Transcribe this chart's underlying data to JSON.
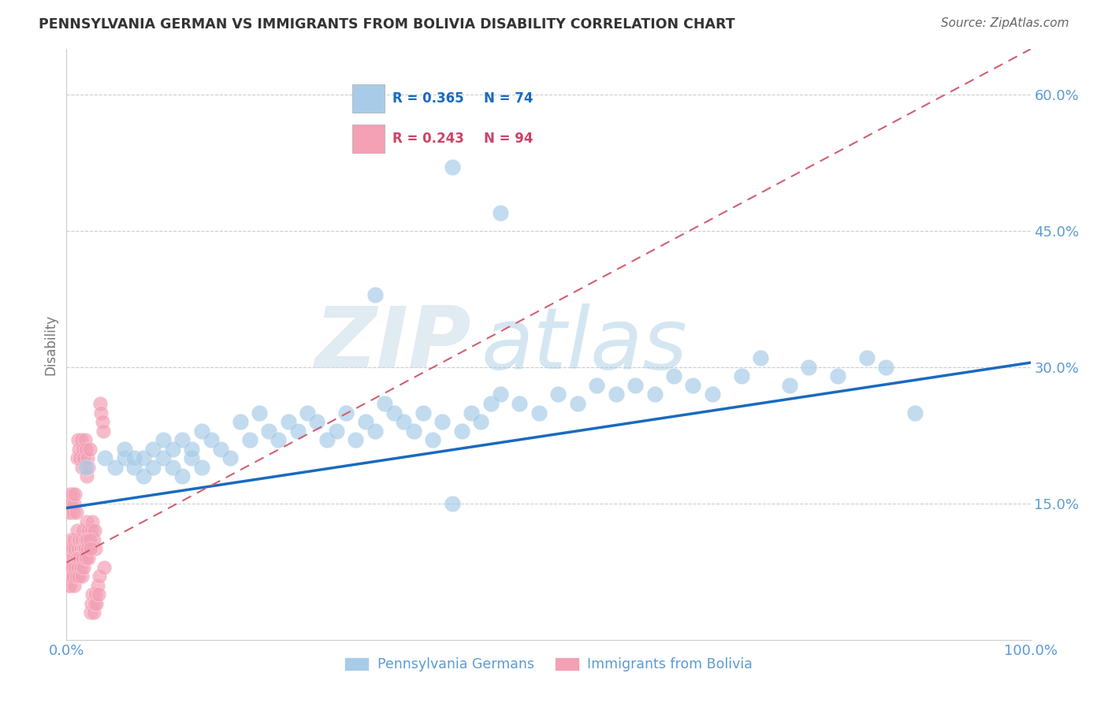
{
  "title": "PENNSYLVANIA GERMAN VS IMMIGRANTS FROM BOLIVIA DISABILITY CORRELATION CHART",
  "source": "Source: ZipAtlas.com",
  "ylabel": "Disability",
  "xlim": [
    0.0,
    1.0
  ],
  "ylim": [
    0.0,
    0.65
  ],
  "yticks": [
    0.15,
    0.3,
    0.45,
    0.6
  ],
  "ytick_labels": [
    "15.0%",
    "30.0%",
    "45.0%",
    "60.0%"
  ],
  "xticks": [
    0.0,
    1.0
  ],
  "xtick_labels": [
    "0.0%",
    "100.0%"
  ],
  "grid_color": "#cccccc",
  "background_color": "#ffffff",
  "blue_color": "#a8cce8",
  "pink_color": "#f4a0b5",
  "blue_line_color": "#1a6abf",
  "pink_line_color": "#d06070",
  "legend_label_blue": "Pennsylvania Germans",
  "legend_label_pink": "Immigrants from Bolivia",
  "watermark_zip": "ZIP",
  "watermark_atlas": "atlas",
  "title_color": "#333333",
  "axis_color": "#5b9bd5",
  "blue_points_x": [
    0.02,
    0.04,
    0.05,
    0.06,
    0.06,
    0.07,
    0.07,
    0.08,
    0.08,
    0.09,
    0.09,
    0.1,
    0.1,
    0.11,
    0.11,
    0.12,
    0.12,
    0.13,
    0.13,
    0.14,
    0.14,
    0.15,
    0.16,
    0.17,
    0.18,
    0.19,
    0.2,
    0.21,
    0.22,
    0.23,
    0.24,
    0.25,
    0.26,
    0.27,
    0.28,
    0.29,
    0.3,
    0.31,
    0.32,
    0.33,
    0.34,
    0.35,
    0.36,
    0.37,
    0.38,
    0.39,
    0.4,
    0.41,
    0.42,
    0.43,
    0.44,
    0.45,
    0.47,
    0.49,
    0.51,
    0.53,
    0.55,
    0.57,
    0.59,
    0.61,
    0.63,
    0.65,
    0.67,
    0.7,
    0.72,
    0.75,
    0.77,
    0.8,
    0.83,
    0.85,
    0.88,
    0.4,
    0.32,
    0.45
  ],
  "blue_points_y": [
    0.19,
    0.2,
    0.19,
    0.2,
    0.21,
    0.19,
    0.2,
    0.18,
    0.2,
    0.19,
    0.21,
    0.22,
    0.2,
    0.19,
    0.21,
    0.18,
    0.22,
    0.2,
    0.21,
    0.19,
    0.23,
    0.22,
    0.21,
    0.2,
    0.24,
    0.22,
    0.25,
    0.23,
    0.22,
    0.24,
    0.23,
    0.25,
    0.24,
    0.22,
    0.23,
    0.25,
    0.22,
    0.24,
    0.23,
    0.26,
    0.25,
    0.24,
    0.23,
    0.25,
    0.22,
    0.24,
    0.15,
    0.23,
    0.25,
    0.24,
    0.26,
    0.27,
    0.26,
    0.25,
    0.27,
    0.26,
    0.28,
    0.27,
    0.28,
    0.27,
    0.29,
    0.28,
    0.27,
    0.29,
    0.31,
    0.28,
    0.3,
    0.29,
    0.31,
    0.3,
    0.25,
    0.52,
    0.38,
    0.47
  ],
  "pink_points_x": [
    0.001,
    0.002,
    0.003,
    0.004,
    0.005,
    0.006,
    0.007,
    0.008,
    0.009,
    0.01,
    0.011,
    0.012,
    0.013,
    0.014,
    0.015,
    0.016,
    0.017,
    0.018,
    0.019,
    0.02,
    0.021,
    0.022,
    0.023,
    0.024,
    0.025,
    0.026,
    0.027,
    0.028,
    0.029,
    0.03,
    0.001,
    0.002,
    0.003,
    0.004,
    0.005,
    0.006,
    0.007,
    0.008,
    0.009,
    0.01,
    0.011,
    0.012,
    0.013,
    0.014,
    0.015,
    0.016,
    0.017,
    0.018,
    0.019,
    0.02,
    0.021,
    0.022,
    0.023,
    0.024,
    0.025,
    0.001,
    0.002,
    0.003,
    0.004,
    0.005,
    0.006,
    0.007,
    0.008,
    0.009,
    0.01,
    0.011,
    0.012,
    0.013,
    0.014,
    0.015,
    0.016,
    0.017,
    0.018,
    0.019,
    0.02,
    0.021,
    0.022,
    0.023,
    0.024,
    0.025,
    0.026,
    0.027,
    0.028,
    0.029,
    0.03,
    0.031,
    0.032,
    0.033,
    0.034,
    0.035,
    0.036,
    0.037,
    0.038,
    0.039
  ],
  "pink_points_y": [
    0.08,
    0.1,
    0.09,
    0.11,
    0.08,
    0.1,
    0.09,
    0.11,
    0.1,
    0.08,
    0.12,
    0.1,
    0.11,
    0.09,
    0.1,
    0.11,
    0.12,
    0.1,
    0.11,
    0.09,
    0.13,
    0.11,
    0.12,
    0.1,
    0.11,
    0.12,
    0.13,
    0.11,
    0.12,
    0.1,
    0.06,
    0.07,
    0.08,
    0.06,
    0.07,
    0.08,
    0.07,
    0.06,
    0.08,
    0.07,
    0.09,
    0.08,
    0.07,
    0.09,
    0.08,
    0.07,
    0.09,
    0.08,
    0.1,
    0.09,
    0.11,
    0.1,
    0.09,
    0.11,
    0.1,
    0.14,
    0.15,
    0.16,
    0.14,
    0.15,
    0.16,
    0.14,
    0.15,
    0.16,
    0.14,
    0.2,
    0.22,
    0.21,
    0.2,
    0.22,
    0.19,
    0.21,
    0.2,
    0.22,
    0.21,
    0.18,
    0.2,
    0.19,
    0.21,
    0.03,
    0.04,
    0.05,
    0.03,
    0.04,
    0.05,
    0.04,
    0.06,
    0.05,
    0.07,
    0.26,
    0.25,
    0.24,
    0.23,
    0.08
  ],
  "blue_line_x0": 0.0,
  "blue_line_y0": 0.145,
  "blue_line_x1": 1.0,
  "blue_line_y1": 0.305,
  "pink_line_x0": 0.0,
  "pink_line_y0": 0.085,
  "pink_line_x1": 1.0,
  "pink_line_y1": 0.65
}
